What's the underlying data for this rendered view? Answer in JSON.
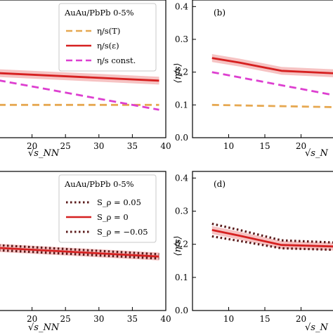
{
  "colors": {
    "orange": "#e6a851",
    "red": "#d62020",
    "magenta": "#dd3fd0",
    "maroon": "#5a1a1a",
    "band": "#f2a9a9"
  },
  "chart_data": [
    {
      "panel": "a",
      "type": "line",
      "panel_label": "",
      "xlabel": "√s_NN",
      "ylabel": "",
      "xlim": [
        15,
        40
      ],
      "ylim": [
        0.0,
        0.42
      ],
      "x_ticks": [
        "20",
        "25",
        "30",
        "35",
        "40"
      ],
      "legend": {
        "title": "AuAu/PbPb 0-5%",
        "placement": "top-right"
      },
      "series": [
        {
          "name": "η/s(T)",
          "style": "dashed",
          "color": "#e6a851",
          "x": [
            15,
            39
          ],
          "y": [
            0.1,
            0.1
          ]
        },
        {
          "name": "η/s(ε)",
          "style": "solid",
          "color": "#d62020",
          "x": [
            15,
            39
          ],
          "y": [
            0.197,
            0.174
          ]
        },
        {
          "name": "η/s const.",
          "style": "dashed",
          "color": "#dd3fd0",
          "x": [
            15,
            39
          ],
          "y": [
            0.175,
            0.085
          ]
        }
      ]
    },
    {
      "panel": "b",
      "type": "line",
      "panel_label": "(b)",
      "xlabel": "√s_N",
      "ylabel": "⟨η/s⟩",
      "xlim": [
        5,
        25
      ],
      "ylim": [
        0.0,
        0.42
      ],
      "y_ticks": [
        "0.0",
        "0.1",
        "0.2",
        "0.3",
        "0.4"
      ],
      "x_ticks": [
        "10",
        "15",
        "20"
      ],
      "series": [
        {
          "name": "η/s(ε)",
          "style": "solid",
          "color": "#d62020",
          "x": [
            7.7,
            11.5,
            17.3,
            25
          ],
          "y": [
            0.243,
            0.229,
            0.204,
            0.196
          ]
        },
        {
          "name": "η/s const.",
          "style": "dashed",
          "color": "#dd3fd0",
          "x": [
            7.7,
            25
          ],
          "y": [
            0.2,
            0.128
          ]
        },
        {
          "name": "η/s(T)",
          "style": "dashed",
          "color": "#e6a851",
          "x": [
            7.7,
            25
          ],
          "y": [
            0.1,
            0.093
          ]
        }
      ]
    },
    {
      "panel": "c",
      "type": "line",
      "panel_label": "",
      "xlabel": "√s_NN",
      "ylabel": "",
      "xlim": [
        15,
        40
      ],
      "ylim": [
        0.0,
        0.42
      ],
      "x_ticks": [
        "20",
        "25",
        "30",
        "35",
        "40"
      ],
      "legend": {
        "title": "AuAu/PbPb 0-5%",
        "placement": "top-right"
      },
      "series": [
        {
          "name": "S_ρ = 0.05",
          "style": "dotted",
          "color": "#5a1a1a",
          "x": [
            15,
            39
          ],
          "y": [
            0.197,
            0.17
          ]
        },
        {
          "name": "S_ρ = 0",
          "style": "solid",
          "color": "#d62020",
          "x": [
            15,
            39
          ],
          "y": [
            0.189,
            0.163
          ]
        },
        {
          "name": "S_ρ = −0.05",
          "style": "dotted",
          "color": "#5a1a1a",
          "x": [
            15,
            39
          ],
          "y": [
            0.182,
            0.157
          ]
        }
      ]
    },
    {
      "panel": "d",
      "type": "line",
      "panel_label": "(d)",
      "xlabel": "√s_N",
      "ylabel": "⟨η/s⟩",
      "xlim": [
        5,
        25
      ],
      "ylim": [
        0.0,
        0.42
      ],
      "y_ticks": [
        "0.0",
        "0.1",
        "0.2",
        "0.3",
        "0.4"
      ],
      "x_ticks": [
        "10",
        "15",
        "20"
      ],
      "series": [
        {
          "name": "S_ρ = 0.05",
          "style": "dotted",
          "color": "#5a1a1a",
          "x": [
            7.7,
            11.5,
            17.3,
            25
          ],
          "y": [
            0.262,
            0.243,
            0.212,
            0.205
          ]
        },
        {
          "name": "S_ρ = 0",
          "style": "solid",
          "color": "#d62020",
          "x": [
            7.7,
            11.5,
            17.3,
            25
          ],
          "y": [
            0.243,
            0.226,
            0.198,
            0.193
          ]
        },
        {
          "name": "S_ρ = −0.05",
          "style": "dotted",
          "color": "#5a1a1a",
          "x": [
            7.7,
            11.5,
            17.3,
            25
          ],
          "y": [
            0.224,
            0.21,
            0.188,
            0.183
          ]
        }
      ]
    }
  ]
}
